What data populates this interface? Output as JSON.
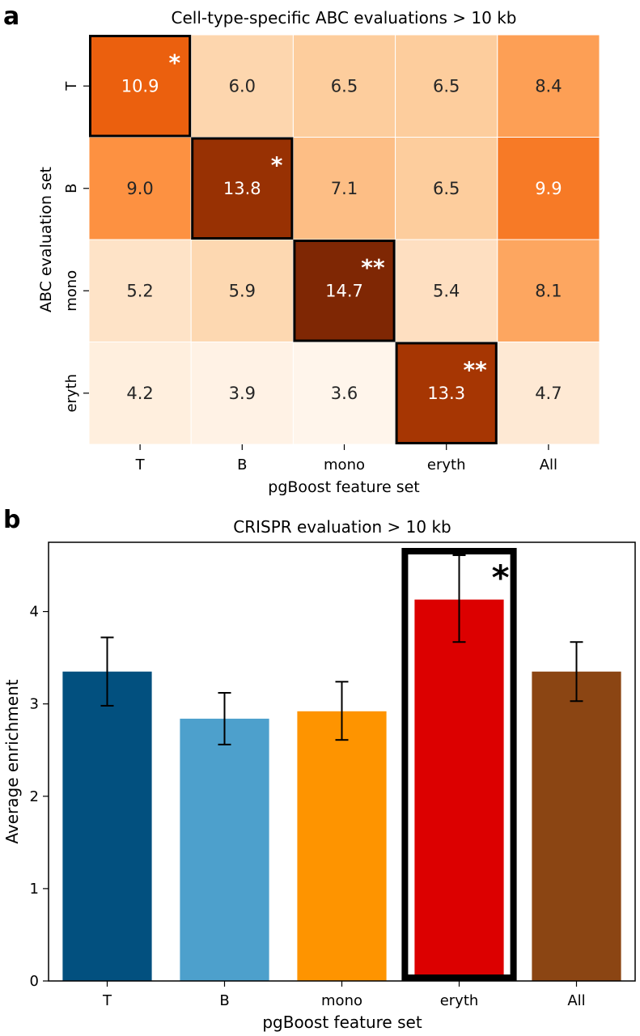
{
  "panels": {
    "a": {
      "letter": "a"
    },
    "b": {
      "letter": "b"
    }
  },
  "chart_data": [
    {
      "type": "heatmap",
      "title": "Cell-type-specific ABC evaluations > 10 kb",
      "xlabel": "pgBoost feature set",
      "ylabel": "ABC evaluation set",
      "x_categories": [
        "T",
        "B",
        "mono",
        "eryth",
        "All"
      ],
      "y_categories": [
        "T",
        "B",
        "mono",
        "eryth"
      ],
      "values": [
        [
          10.9,
          6.0,
          6.5,
          6.5,
          8.4
        ],
        [
          9.0,
          13.8,
          7.1,
          6.5,
          9.9
        ],
        [
          5.2,
          5.9,
          14.7,
          5.4,
          8.1
        ],
        [
          4.2,
          3.9,
          3.6,
          13.3,
          4.7
        ]
      ],
      "value_labels": [
        [
          "10.9",
          "6.0",
          "6.5",
          "6.5",
          "8.4"
        ],
        [
          "9.0",
          "13.8",
          "7.1",
          "6.5",
          "9.9"
        ],
        [
          "5.2",
          "5.9",
          "14.7",
          "5.4",
          "8.1"
        ],
        [
          "4.2",
          "3.9",
          "3.6",
          "13.3",
          "4.7"
        ]
      ],
      "highlighted_cells": [
        {
          "row": 0,
          "col": 0,
          "mark": "*"
        },
        {
          "row": 1,
          "col": 1,
          "mark": "*"
        },
        {
          "row": 2,
          "col": 2,
          "mark": "**"
        },
        {
          "row": 3,
          "col": 3,
          "mark": "**"
        }
      ],
      "colormap": "Oranges",
      "value_range": [
        3.6,
        14.7
      ]
    },
    {
      "type": "bar",
      "title": "CRISPR evaluation > 10 kb",
      "xlabel": "pgBoost feature set",
      "ylabel": "Average enrichment",
      "categories": [
        "T",
        "B",
        "mono",
        "eryth",
        "All"
      ],
      "values": [
        3.35,
        2.84,
        2.92,
        4.13,
        3.35
      ],
      "error_low": [
        2.98,
        2.56,
        2.61,
        3.67,
        3.03
      ],
      "error_high": [
        3.72,
        3.12,
        3.24,
        4.61,
        3.67
      ],
      "colors": [
        "#02507f",
        "#4da0cc",
        "#fe9400",
        "#dc0000",
        "#8b4513"
      ],
      "ylim": [
        0,
        4.75
      ],
      "yticks": [
        0,
        1,
        2,
        3,
        4
      ],
      "highlighted_category": "eryth",
      "highlight_mark": "*"
    }
  ]
}
